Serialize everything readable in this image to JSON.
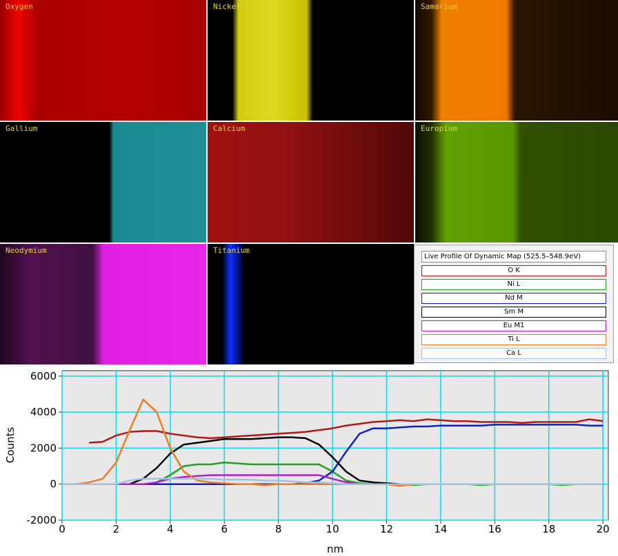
{
  "maps": [
    "Oxygen",
    "Nickel",
    "Samarium",
    "Gallium",
    "Calcium",
    "Europium",
    "Neodymium",
    "Titanium"
  ],
  "chart_data": {
    "type": "line",
    "legend_title": "Live Profile Of Dynamic Map (525.5–548.9eV)",
    "xlabel": "nm",
    "ylabel": "Counts",
    "x": [
      0,
      0.5,
      1,
      1.5,
      2,
      2.5,
      3,
      3.5,
      4,
      4.5,
      5,
      5.5,
      6,
      6.5,
      7,
      7.5,
      8,
      8.5,
      9,
      9.5,
      10,
      10.5,
      11,
      11.5,
      12,
      12.5,
      13,
      13.5,
      14,
      14.5,
      15,
      15.5,
      16,
      16.5,
      17,
      17.5,
      18,
      18.5,
      19,
      19.5,
      20
    ],
    "xlim": [
      0,
      20.2
    ],
    "ylim": [
      -2000,
      6300
    ],
    "xticks": [
      0,
      2,
      4,
      6,
      8,
      10,
      12,
      14,
      16,
      18,
      20
    ],
    "yticks": [
      -2000,
      0,
      2000,
      4000,
      6000
    ],
    "grid": true,
    "series": [
      {
        "name": "O K",
        "color": "#b01818",
        "values": [
          null,
          null,
          2300,
          2350,
          2700,
          2900,
          2950,
          2950,
          2800,
          2700,
          2600,
          2550,
          2600,
          2650,
          2700,
          2750,
          2800,
          2850,
          2900,
          3000,
          3100,
          3250,
          3350,
          3450,
          3500,
          3550,
          3500,
          3600,
          3550,
          3500,
          3500,
          3450,
          3450,
          3450,
          3400,
          3450,
          3450,
          3450,
          3450,
          3600,
          3500
        ]
      },
      {
        "name": "Ni L",
        "color": "#20a020",
        "values": [
          0,
          0,
          0,
          0,
          0,
          0,
          0,
          100,
          500,
          1000,
          1100,
          1100,
          1200,
          1150,
          1100,
          1100,
          1100,
          1100,
          1100,
          1100,
          700,
          200,
          50,
          0,
          0,
          0,
          -50,
          0,
          0,
          0,
          0,
          -50,
          0,
          0,
          0,
          0,
          0,
          -50,
          0,
          0,
          0
        ]
      },
      {
        "name": "Nd M",
        "color": "#1020c0",
        "values": [
          0,
          0,
          0,
          0,
          0,
          0,
          0,
          0,
          0,
          0,
          0,
          0,
          0,
          0,
          0,
          0,
          0,
          0,
          50,
          200,
          700,
          1800,
          2800,
          3100,
          3100,
          3150,
          3200,
          3200,
          3250,
          3250,
          3250,
          3250,
          3300,
          3300,
          3300,
          3300,
          3300,
          3300,
          3300,
          3250,
          3250
        ]
      },
      {
        "name": "Sm M",
        "color": "#000000",
        "values": [
          0,
          0,
          0,
          0,
          0,
          0,
          300,
          900,
          1700,
          2200,
          2300,
          2400,
          2500,
          2500,
          2500,
          2550,
          2600,
          2600,
          2550,
          2200,
          1500,
          700,
          200,
          100,
          50,
          0,
          0,
          0,
          0,
          0,
          0,
          0,
          0,
          0,
          0,
          0,
          0,
          0,
          0,
          0,
          0
        ]
      },
      {
        "name": "Eu M1",
        "color": "#b020c8",
        "values": [
          0,
          0,
          0,
          0,
          0,
          0,
          0,
          100,
          300,
          400,
          450,
          500,
          500,
          500,
          500,
          500,
          500,
          500,
          500,
          500,
          300,
          100,
          0,
          0,
          0,
          0,
          0,
          0,
          0,
          0,
          0,
          0,
          0,
          0,
          0,
          0,
          0,
          0,
          0,
          0,
          0
        ]
      },
      {
        "name": "Ti L",
        "color": "#f07a20",
        "values": [
          0,
          0,
          100,
          300,
          1200,
          3000,
          4700,
          4000,
          2000,
          700,
          200,
          100,
          50,
          0,
          0,
          -50,
          0,
          0,
          0,
          0,
          0,
          0,
          0,
          0,
          0,
          -100,
          0,
          0,
          0,
          0,
          0,
          0,
          0,
          0,
          0,
          0,
          0,
          0,
          0,
          0,
          0
        ]
      },
      {
        "name": "Ca L",
        "color": "#a0c0e8",
        "values": [
          0,
          0,
          0,
          0,
          0,
          200,
          300,
          300,
          300,
          300,
          300,
          300,
          250,
          250,
          250,
          200,
          200,
          150,
          100,
          100,
          50,
          0,
          0,
          0,
          0,
          0,
          0,
          0,
          0,
          0,
          0,
          0,
          0,
          0,
          0,
          0,
          0,
          0,
          0,
          0,
          0
        ]
      }
    ]
  }
}
